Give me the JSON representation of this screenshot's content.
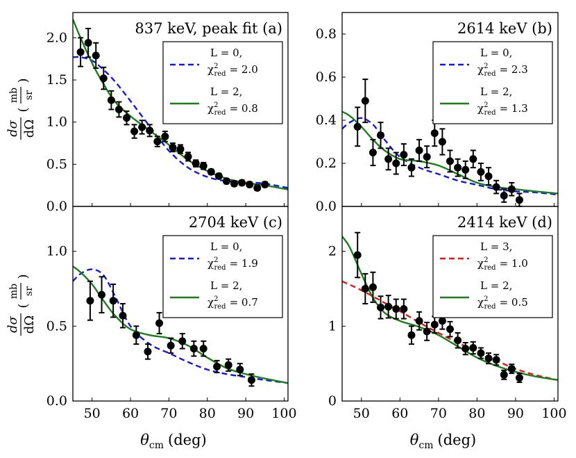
{
  "chart_data": [
    {
      "type": "scatter",
      "panel": "a",
      "title": "837 keV, peak fit (a)",
      "xlim": [
        45,
        101
      ],
      "ylim": [
        0,
        2.3
      ],
      "xticks": [
        50,
        60,
        70,
        80,
        90,
        100
      ],
      "yticks": [
        0.0,
        0.5,
        1.0,
        1.5,
        2.0
      ],
      "ytick_labels": [
        "0.0",
        "0.5",
        "1.0",
        "1.5",
        "2.0"
      ],
      "legend_position": "top-right",
      "data": {
        "x": [
          47,
          49,
          51,
          53,
          55,
          57,
          59,
          61,
          63,
          65,
          67,
          69,
          71,
          73,
          75,
          77,
          79,
          81,
          83,
          85,
          87,
          89,
          91,
          93,
          95
        ],
        "y": [
          1.83,
          1.94,
          1.79,
          1.52,
          1.26,
          1.15,
          1.05,
          0.89,
          0.94,
          0.9,
          0.77,
          0.83,
          0.7,
          0.68,
          0.59,
          0.51,
          0.48,
          0.41,
          0.36,
          0.3,
          0.27,
          0.28,
          0.26,
          0.22,
          0.26
        ],
        "err": [
          0.17,
          0.17,
          0.15,
          0.13,
          0.11,
          0.09,
          0.08,
          0.08,
          0.08,
          0.07,
          0.06,
          0.06,
          0.05,
          0.05,
          0.05,
          0.04,
          0.04,
          0.03,
          0.03,
          0.03,
          0.03,
          0.03,
          0.03,
          0.03,
          0.03
        ]
      },
      "series": [
        {
          "name": "L = 0",
          "chi2": "= 2.0",
          "style": "dashed",
          "color": "#1515e6",
          "x": [
            45,
            47,
            50,
            53,
            56,
            60,
            65,
            70,
            75,
            80,
            85,
            90,
            95,
            101
          ],
          "y": [
            1.77,
            1.77,
            1.73,
            1.62,
            1.48,
            1.25,
            0.95,
            0.66,
            0.46,
            0.35,
            0.3,
            0.29,
            0.27,
            0.22
          ]
        },
        {
          "name": "L = 2",
          "chi2": "= 0.8",
          "style": "solid",
          "color": "#1a7f1a",
          "x": [
            45,
            47,
            50,
            53,
            56,
            60,
            65,
            70,
            75,
            80,
            85,
            90,
            95,
            101
          ],
          "y": [
            2.22,
            2.0,
            1.7,
            1.45,
            1.24,
            1.07,
            0.9,
            0.73,
            0.55,
            0.42,
            0.33,
            0.28,
            0.25,
            0.2
          ]
        }
      ]
    },
    {
      "type": "scatter",
      "panel": "b",
      "title": "2614 keV (b)",
      "xlim": [
        45,
        101
      ],
      "ylim": [
        0,
        0.9
      ],
      "xticks": [
        50,
        60,
        70,
        80,
        90,
        100
      ],
      "yticks": [
        0.0,
        0.2,
        0.4,
        0.6,
        0.8
      ],
      "ytick_labels": [
        "0.0",
        "0.2",
        "0.4",
        "0.6",
        "0.8"
      ],
      "legend_position": "top-right",
      "data": {
        "x": [
          49,
          51,
          53,
          55,
          57,
          59,
          61,
          63,
          65,
          67,
          69,
          71,
          73,
          75,
          77,
          79,
          81,
          83,
          85,
          87,
          89,
          91
        ],
        "y": [
          0.37,
          0.49,
          0.25,
          0.33,
          0.22,
          0.2,
          0.24,
          0.18,
          0.26,
          0.23,
          0.34,
          0.3,
          0.21,
          0.18,
          0.17,
          0.22,
          0.16,
          0.14,
          0.09,
          0.05,
          0.08,
          0.03
        ],
        "err": [
          0.09,
          0.1,
          0.06,
          0.06,
          0.05,
          0.05,
          0.05,
          0.04,
          0.05,
          0.05,
          0.06,
          0.06,
          0.05,
          0.04,
          0.04,
          0.04,
          0.04,
          0.04,
          0.03,
          0.03,
          0.03,
          0.03
        ]
      },
      "series": [
        {
          "name": "L = 0",
          "chi2": "= 2.3",
          "style": "dashed",
          "color": "#1515e6",
          "x": [
            45,
            47,
            50,
            53,
            56,
            60,
            65,
            70,
            75,
            80,
            85,
            90,
            95,
            101
          ],
          "y": [
            0.36,
            0.39,
            0.41,
            0.38,
            0.31,
            0.23,
            0.18,
            0.15,
            0.12,
            0.1,
            0.08,
            0.07,
            0.065,
            0.055
          ]
        },
        {
          "name": "L = 2",
          "chi2": "= 1.3",
          "style": "solid",
          "color": "#1a7f1a",
          "x": [
            45,
            47,
            50,
            53,
            56,
            60,
            65,
            70,
            75,
            80,
            85,
            90,
            95,
            101
          ],
          "y": [
            0.44,
            0.42,
            0.37,
            0.31,
            0.26,
            0.22,
            0.21,
            0.19,
            0.15,
            0.11,
            0.09,
            0.08,
            0.07,
            0.06
          ]
        }
      ]
    },
    {
      "type": "scatter",
      "panel": "c",
      "title": "2704 keV (c)",
      "xlim": [
        45,
        101
      ],
      "ylim": [
        0,
        1.3
      ],
      "xticks": [
        50,
        60,
        70,
        80,
        90,
        100
      ],
      "yticks": [
        0.0,
        0.5,
        1.0
      ],
      "ytick_labels": [
        "0.0",
        "0.5",
        "1.0"
      ],
      "legend_position": "top-right",
      "data": {
        "x": [
          49.5,
          52.5,
          55.5,
          58,
          61.5,
          64.5,
          67.5,
          70.5,
          73.5,
          76.5,
          79,
          82.5,
          85.5,
          88.5,
          91.5
        ],
        "y": [
          0.67,
          0.71,
          0.67,
          0.57,
          0.44,
          0.33,
          0.52,
          0.37,
          0.4,
          0.35,
          0.35,
          0.23,
          0.24,
          0.21,
          0.14
        ],
        "err": [
          0.13,
          0.12,
          0.11,
          0.08,
          0.06,
          0.05,
          0.07,
          0.05,
          0.05,
          0.05,
          0.05,
          0.04,
          0.04,
          0.04,
          0.04
        ]
      },
      "series": [
        {
          "name": "L = 0",
          "chi2": "= 1.9",
          "style": "dashed",
          "color": "#1515e6",
          "x": [
            45,
            47,
            50,
            53,
            56,
            60,
            65,
            70,
            75,
            80,
            85,
            90,
            95,
            101
          ],
          "y": [
            0.8,
            0.85,
            0.88,
            0.84,
            0.7,
            0.5,
            0.38,
            0.32,
            0.26,
            0.21,
            0.18,
            0.16,
            0.14,
            0.12
          ]
        },
        {
          "name": "L = 2",
          "chi2": "= 0.7",
          "style": "solid",
          "color": "#1a7f1a",
          "x": [
            45,
            47,
            50,
            53,
            56,
            60,
            65,
            70,
            75,
            80,
            85,
            90,
            95,
            101
          ],
          "y": [
            0.9,
            0.86,
            0.78,
            0.67,
            0.57,
            0.48,
            0.44,
            0.42,
            0.37,
            0.29,
            0.22,
            0.18,
            0.15,
            0.12
          ]
        }
      ]
    },
    {
      "type": "scatter",
      "panel": "d",
      "title": "2414 keV (d)",
      "xlim": [
        45,
        101
      ],
      "ylim": [
        0,
        2.6
      ],
      "xticks": [
        50,
        60,
        70,
        80,
        90,
        100
      ],
      "yticks": [
        0,
        1,
        2
      ],
      "ytick_labels": [
        "0",
        "1",
        "2"
      ],
      "legend_position": "top-right",
      "data": {
        "x": [
          49,
          51,
          53,
          55,
          57,
          59,
          61,
          63,
          65,
          67,
          69,
          71,
          73,
          75,
          77,
          79,
          81,
          83,
          85,
          87,
          89,
          91
        ],
        "y": [
          1.95,
          1.5,
          1.52,
          1.25,
          1.26,
          1.23,
          1.23,
          0.88,
          1.07,
          0.93,
          1.02,
          1.07,
          0.96,
          0.81,
          0.7,
          0.71,
          0.64,
          0.57,
          0.55,
          0.35,
          0.43,
          0.31
        ],
        "err": [
          0.3,
          0.2,
          0.2,
          0.15,
          0.15,
          0.13,
          0.13,
          0.12,
          0.12,
          0.12,
          0.11,
          0.11,
          0.1,
          0.1,
          0.08,
          0.08,
          0.07,
          0.07,
          0.07,
          0.06,
          0.06,
          0.06
        ]
      },
      "series": [
        {
          "name": "L = 3",
          "chi2": "= 1.0",
          "style": "dashed",
          "color": "#e61515",
          "x": [
            45,
            50,
            55,
            60,
            65,
            70,
            75,
            80,
            85,
            90,
            95,
            101
          ],
          "y": [
            1.6,
            1.48,
            1.34,
            1.2,
            1.05,
            0.91,
            0.78,
            0.66,
            0.54,
            0.43,
            0.35,
            0.28
          ]
        },
        {
          "name": "L = 2",
          "chi2": "= 0.5",
          "style": "solid",
          "color": "#1a7f1a",
          "x": [
            45,
            47,
            50,
            53,
            56,
            60,
            65,
            70,
            75,
            80,
            85,
            90,
            95,
            101
          ],
          "y": [
            2.2,
            2.05,
            1.7,
            1.38,
            1.18,
            1.07,
            0.99,
            0.88,
            0.73,
            0.58,
            0.47,
            0.39,
            0.33,
            0.28
          ]
        }
      ]
    }
  ],
  "axes": {
    "xlabel_sym": "θ",
    "xlabel_sub": "cm",
    "xlabel_unit": "(deg)",
    "ylabel_num": "dσ",
    "ylabel_den": "dΩ",
    "ylabel_unit_num": "mb",
    "ylabel_unit_den": "sr",
    "chi2_sym": "χ",
    "chi2_sup": "2",
    "chi2_sub": "red"
  }
}
